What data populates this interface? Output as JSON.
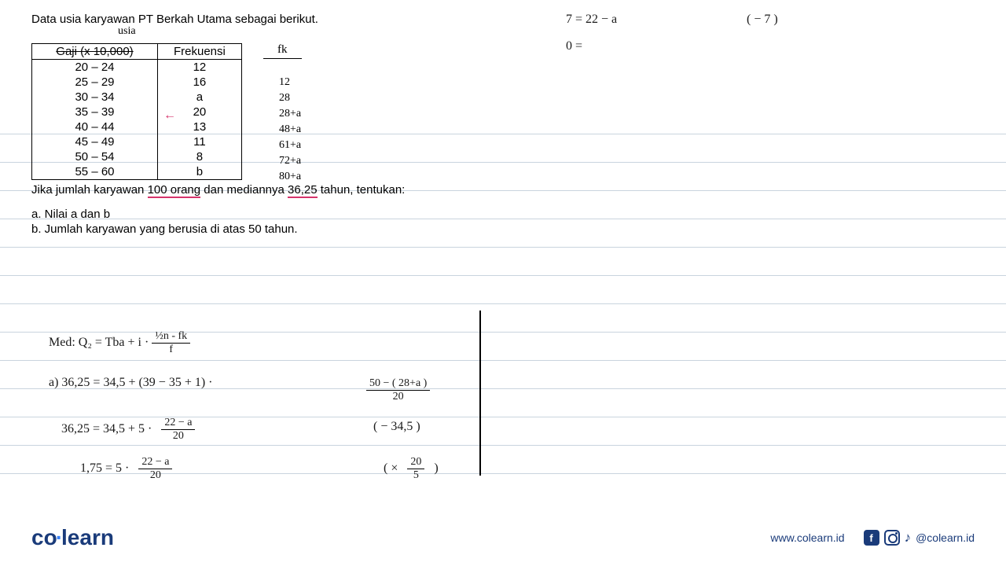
{
  "problem": {
    "title": "Data usia karyawan PT Berkah Utama sebagai berikut.",
    "hand_label": "usia",
    "table": {
      "header1": "Gaji (x 10,000)",
      "header2": "Frekuensi",
      "fk_header": "fk",
      "rows": [
        {
          "range": "20 – 24",
          "freq": "12",
          "fk": "12"
        },
        {
          "range": "25 – 29",
          "freq": "16",
          "fk": "28"
        },
        {
          "range": "30 – 34",
          "freq": "a",
          "fk": "28+a"
        },
        {
          "range": "35 – 39",
          "freq": "20",
          "fk": "48+a"
        },
        {
          "range": "40 – 44",
          "freq": "13",
          "fk": "61+a"
        },
        {
          "range": "45 – 49",
          "freq": "11",
          "fk": "72+a"
        },
        {
          "range": "50 – 54",
          "freq": "8",
          "fk": "80+a"
        },
        {
          "range": "55 – 60",
          "freq": "b",
          "fk": ""
        }
      ],
      "arrow": "←"
    },
    "question_pre": "Jika jumlah karyawan ",
    "question_underline1": "100 orang",
    "question_mid": " dan mediannya ",
    "question_underline2": "36,25",
    "question_post": " tahun, tentukan:",
    "sub_a": "a.   Nilai a dan b",
    "sub_b": "b.   Jumlah karyawan yang berusia di atas 50 tahun."
  },
  "work": {
    "med_formula": "Med:   Q₂ =  Tba  +  i ·",
    "med_num": "½n - fk",
    "med_den": "f",
    "eq1_a": "a)   36,25 =   34,5   +   (39 − 35 + 1) ·",
    "eq1_num": "50 − ( 28+a )",
    "eq1_den": "20",
    "eq2": "36,25  =  34,5   +    5 ·",
    "eq2_num": "22 − a",
    "eq2_den": "20",
    "eq3": "1,75   =    5 ·",
    "eq3_num": "22 − a",
    "eq3_den": "20",
    "side2": "( −   34,5 )",
    "side3_open": "( ×",
    "side3_num": "20",
    "side3_den": "5",
    "side3_close": ")",
    "tr1": "7   =    22 − a",
    "tr2": "(  −   7 )",
    "tr3": "0 ="
  },
  "footer": {
    "logo_co": "co",
    "logo_learn": "learn",
    "url": "www.colearn.id",
    "handle": "@colearn.id"
  },
  "colors": {
    "rule_line": "#c9d4de",
    "pink": "#d6336c",
    "brand": "#1a3b7a"
  }
}
